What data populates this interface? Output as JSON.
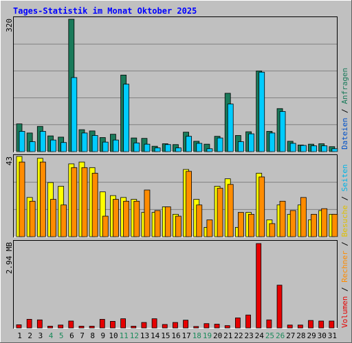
{
  "title": "Tages-Statistik im Monat Oktober 2025",
  "colors": {
    "anfragen": "#1a7a5a",
    "dateien": "#00ccff",
    "seiten": "#00ccff",
    "besuche": "#ffff00",
    "rechner": "#ff8c00",
    "volumen": "#e60000",
    "weekend": "#1a8a5a",
    "weekday": "#000000",
    "title": "#0000ff",
    "background": "#c0c0c0",
    "grid": "#808080"
  },
  "legend": {
    "top": [
      {
        "key": "dateien",
        "label": "Dateien",
        "color": "#0050c8"
      },
      {
        "key": "anfragen",
        "label": "Anfragen",
        "color": "#1a7a5a"
      }
    ],
    "sep": "/",
    "bottom": [
      {
        "key": "volumen",
        "label": "Volumen",
        "color": "#e60000"
      },
      {
        "key": "rechner",
        "label": "Rechner",
        "color": "#ff8c00"
      },
      {
        "key": "besuche",
        "label": "Besuche",
        "color": "#e0c000"
      },
      {
        "key": "seiten",
        "label": "Seiten",
        "color": "#00b4e6"
      }
    ]
  },
  "chart_data": [
    {
      "type": "bar",
      "ymax_label": "320",
      "ylim": [
        0,
        320
      ],
      "categories": [
        "1",
        "2",
        "3",
        "4",
        "5",
        "6",
        "7",
        "8",
        "9",
        "10",
        "11",
        "12",
        "13",
        "14",
        "15",
        "16",
        "17",
        "18",
        "19",
        "20",
        "21",
        "22",
        "23",
        "24",
        "25",
        "26",
        "27",
        "28",
        "29",
        "30",
        "31"
      ],
      "weekend_days": [
        "4",
        "5",
        "11",
        "12",
        "18",
        "19",
        "25",
        "26"
      ],
      "series": [
        {
          "name": "Anfragen",
          "values": [
            67,
            45,
            61,
            38,
            35,
            320,
            53,
            50,
            34,
            42,
            185,
            33,
            32,
            13,
            19,
            17,
            47,
            25,
            18,
            37,
            141,
            39,
            48,
            195,
            49,
            104,
            25,
            16,
            18,
            19,
            12
          ]
        },
        {
          "name": "Dateien",
          "values": [
            49,
            24,
            49,
            28,
            22,
            179,
            45,
            39,
            23,
            28,
            163,
            21,
            18,
            9,
            17,
            9,
            37,
            20,
            7,
            33,
            115,
            24,
            43,
            192,
            45,
            97,
            20,
            15,
            14,
            14,
            7
          ]
        }
      ]
    },
    {
      "type": "bar",
      "ymax_label": "43",
      "ylim": [
        0,
        43
      ],
      "categories": [
        "1",
        "2",
        "3",
        "4",
        "5",
        "6",
        "7",
        "8",
        "9",
        "10",
        "11",
        "12",
        "13",
        "14",
        "15",
        "16",
        "17",
        "18",
        "19",
        "20",
        "21",
        "22",
        "23",
        "24",
        "25",
        "26",
        "27",
        "28",
        "29",
        "30",
        "31"
      ],
      "series": [
        {
          "name": "Seiten",
          "values": [
            43,
            21,
            42,
            29,
            27,
            39,
            40,
            37,
            24,
            22,
            21,
            20,
            13,
            13,
            16,
            12,
            36,
            20,
            5,
            27,
            31,
            5,
            13,
            34,
            9,
            17,
            12,
            17,
            9,
            14,
            12
          ]
        },
        {
          "name": "Besuche",
          "values": [
            43,
            21,
            42,
            29,
            27,
            39,
            40,
            37,
            24,
            22,
            21,
            20,
            13,
            13,
            16,
            12,
            36,
            20,
            5,
            27,
            31,
            5,
            13,
            34,
            9,
            17,
            12,
            17,
            9,
            14,
            12
          ]
        },
        {
          "name": "Rechner",
          "values": [
            40,
            19,
            40,
            20,
            17,
            37,
            37,
            34,
            11,
            20,
            19,
            19,
            25,
            14,
            16,
            11,
            35,
            17,
            9,
            26,
            28,
            13,
            12,
            32,
            7,
            19,
            14,
            21,
            12,
            15,
            12
          ]
        }
      ]
    },
    {
      "type": "bar",
      "ymax_label": "2.94 MB",
      "ylim": [
        0,
        2.94
      ],
      "categories": [
        "1",
        "2",
        "3",
        "4",
        "5",
        "6",
        "7",
        "8",
        "9",
        "10",
        "11",
        "12",
        "13",
        "14",
        "15",
        "16",
        "17",
        "18",
        "19",
        "20",
        "21",
        "22",
        "23",
        "24",
        "25",
        "26",
        "27",
        "28",
        "29",
        "30",
        "31"
      ],
      "series": [
        {
          "name": "Volumen",
          "values": [
            0.11,
            0.3,
            0.28,
            0.06,
            0.1,
            0.24,
            0.06,
            0.06,
            0.3,
            0.23,
            0.32,
            0.06,
            0.19,
            0.32,
            0.12,
            0.19,
            0.27,
            0.05,
            0.15,
            0.13,
            0.08,
            0.35,
            0.45,
            2.94,
            0.28,
            1.49,
            0.1,
            0.1,
            0.26,
            0.24,
            0.24
          ]
        }
      ]
    }
  ]
}
